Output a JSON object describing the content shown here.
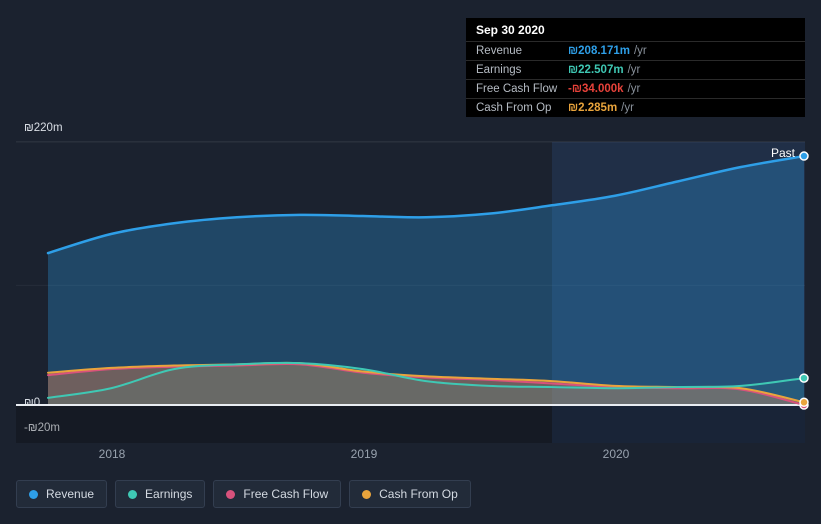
{
  "axis": {
    "y_labels": [
      "₪220m",
      "₪0",
      "-₪20m"
    ],
    "x_labels": [
      "2018",
      "2019",
      "2020"
    ],
    "past_label": "Past"
  },
  "tooltip": {
    "date": "Sep 30 2020",
    "rows": [
      {
        "label": "Revenue",
        "value": "₪208.171m",
        "suffix": "/yr",
        "color": "#2e9fe8"
      },
      {
        "label": "Earnings",
        "value": "₪22.507m",
        "suffix": "/yr",
        "color": "#3fc8b4"
      },
      {
        "label": "Free Cash Flow",
        "value": "-₪34.000k",
        "suffix": "/yr",
        "color": "#e8423a"
      },
      {
        "label": "Cash From Op",
        "value": "₪2.285m",
        "suffix": "/yr",
        "color": "#e9a43c"
      }
    ]
  },
  "legend": [
    {
      "label": "Revenue",
      "color": "#2e9fe8"
    },
    {
      "label": "Earnings",
      "color": "#3fc8b4"
    },
    {
      "label": "Free Cash Flow",
      "color": "#d8527c"
    },
    {
      "label": "Cash From Op",
      "color": "#e9a43c"
    }
  ],
  "chart_data": {
    "type": "area",
    "x": [
      2017.75,
      2018.0,
      2018.25,
      2018.5,
      2018.75,
      2019.0,
      2019.25,
      2019.5,
      2019.75,
      2020.0,
      2020.25,
      2020.5,
      2020.75
    ],
    "series": [
      {
        "name": "Revenue",
        "color": "#2e9fe8",
        "values": [
          127,
          143,
          152,
          157,
          159,
          158,
          157,
          160,
          167,
          175,
          187,
          199,
          208.171
        ]
      },
      {
        "name": "Earnings",
        "color": "#3fc8b4",
        "values": [
          6,
          14,
          30,
          34,
          35,
          30,
          20,
          16,
          15,
          14,
          15,
          16,
          22.507
        ]
      },
      {
        "name": "Free Cash Flow",
        "color": "#d8527c",
        "values": [
          25,
          30,
          32,
          33,
          34,
          27,
          23,
          21,
          18,
          15,
          14,
          13,
          -0.034
        ]
      },
      {
        "name": "Cash From Op",
        "color": "#e9a43c",
        "values": [
          27,
          31,
          33,
          34,
          35,
          28,
          24,
          22,
          20,
          16,
          15,
          14,
          2.285
        ]
      }
    ],
    "ylim": [
      -20,
      220
    ],
    "xlabels": [
      "2018",
      "2019",
      "2020"
    ],
    "past_region_start": 2019.75,
    "grid": "horizontal-faint",
    "legend_position": "bottom-left",
    "currency": "₪"
  }
}
